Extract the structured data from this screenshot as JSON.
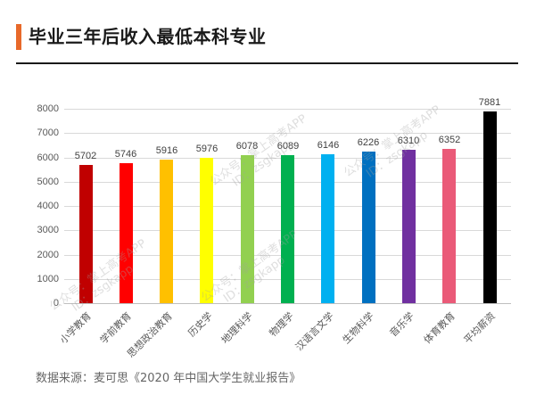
{
  "header": {
    "title": "毕业三年后收入最低本科专业",
    "accent_color": "#e8692a"
  },
  "chart_data": {
    "type": "bar",
    "title": "毕业三年后收入最低本科专业",
    "xlabel": "",
    "ylabel": "",
    "ylim": [
      0,
      8000
    ],
    "yticks": [
      0,
      1000,
      2000,
      3000,
      4000,
      5000,
      6000,
      7000,
      8000
    ],
    "grid": true,
    "legend": null,
    "categories": [
      "小学教育",
      "学前教育",
      "思想政治教育",
      "历史学",
      "地理科学",
      "物理学",
      "汉语言文学",
      "生物科学",
      "音乐学",
      "体育教育",
      "平均薪资"
    ],
    "values": [
      5702,
      5746,
      5916,
      5976,
      6078,
      6089,
      6146,
      6226,
      6310,
      6352,
      7881
    ],
    "colors": [
      "#c00000",
      "#ff0000",
      "#ffc000",
      "#ffff00",
      "#92d050",
      "#00b050",
      "#00b0f0",
      "#0070c0",
      "#7030a0",
      "#ea5a78",
      "#000000"
    ],
    "data_labels": [
      "5702",
      "5746",
      "5916",
      "5976",
      "6078",
      "6089",
      "6146",
      "6226",
      "6310",
      "6352",
      "7881"
    ]
  },
  "watermarks": [
    {
      "line1": "公众号：掌上高考APP",
      "line2": "ID：zsgkapp"
    },
    {
      "line1": "公众号：掌上高考APP",
      "line2": "ID：zsgkapp"
    },
    {
      "line1": "公众号：掌上高考APP",
      "line2": "ID：zsgkapp"
    },
    {
      "line1": "公众号：掌上高考APP",
      "line2": "ID：zsgkapp"
    }
  ],
  "footer": {
    "source": "数据来源：麦可思《2020 年中国大学生就业报告》"
  }
}
